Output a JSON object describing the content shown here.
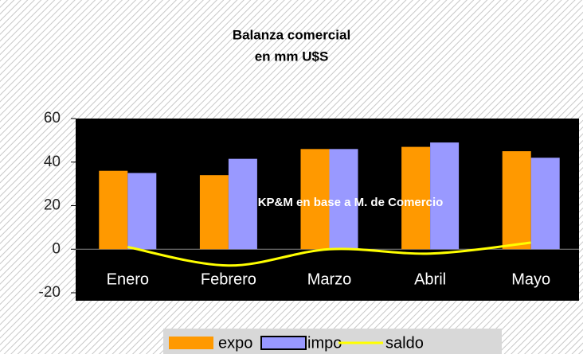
{
  "chart_data": {
    "type": "bar-line",
    "title": [
      "Balanza comercial",
      "en mm U$S"
    ],
    "annotation": "KP&M en base a M. de Comercio",
    "categories": [
      "Enero",
      "Febrero",
      "Marzo",
      "Abril",
      "Mayo"
    ],
    "series": [
      {
        "name": "expo",
        "color": "#ff9900",
        "type": "bar",
        "values": [
          36,
          34,
          46,
          47,
          45
        ]
      },
      {
        "name": "impo",
        "color": "#9999ff",
        "type": "bar",
        "values": [
          35,
          41.5,
          46,
          49,
          42
        ]
      },
      {
        "name": "saldo",
        "color": "#ffff00",
        "type": "line",
        "values": [
          1,
          -7.5,
          0,
          -2,
          3
        ]
      }
    ],
    "ylim": [
      -20,
      60
    ],
    "yticks": [
      -20,
      0,
      20,
      40,
      60
    ],
    "legend": "bottom"
  }
}
